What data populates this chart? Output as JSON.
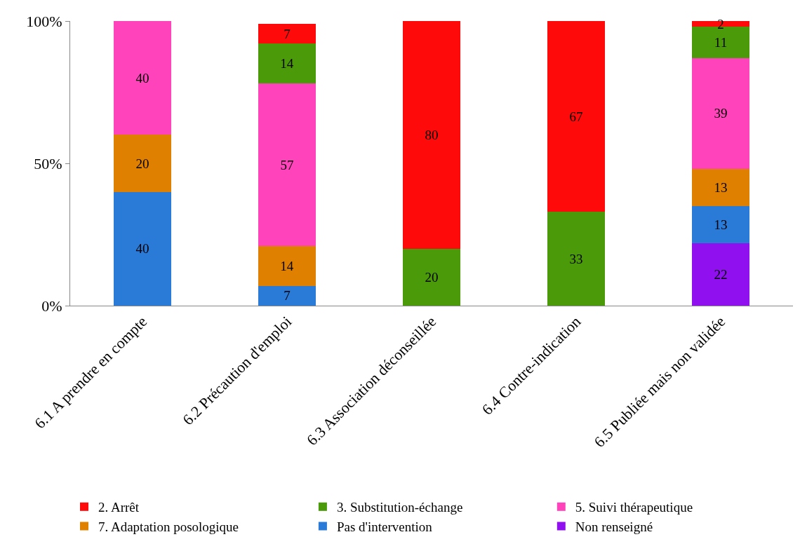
{
  "chart_data": {
    "type": "bar",
    "stacked": true,
    "data_labels": true,
    "legend": "bottom",
    "categories": [
      "6.1 A prendre en compte",
      "6.2 Précaution d'emploi",
      "6.3 Association déconseillée",
      "6.4 Contre-indication",
      "6.5 Publiée mais non validée"
    ],
    "ylim": [
      0,
      100
    ],
    "yticks": [
      {
        "value": 0,
        "label": "0%"
      },
      {
        "value": 50,
        "label": "50%"
      },
      {
        "value": 100,
        "label": "100%"
      }
    ],
    "series": [
      {
        "name": "Non renseigné",
        "color": "#9010f0",
        "values": [
          null,
          null,
          null,
          null,
          22
        ]
      },
      {
        "name": "Pas d'intervention",
        "color": "#2a7ad8",
        "values": [
          40,
          7,
          null,
          null,
          13
        ]
      },
      {
        "name": "7. Adaptation posologique",
        "color": "#e08000",
        "values": [
          20,
          14,
          null,
          null,
          13
        ]
      },
      {
        "name": "5. Suivi thérapeutique",
        "color": "#ff44bb",
        "values": [
          40,
          57,
          null,
          null,
          39
        ]
      },
      {
        "name": "3. Substitution-échange",
        "color": "#4a9a0a",
        "values": [
          null,
          14,
          20,
          33,
          11
        ]
      },
      {
        "name": "2. Arrêt",
        "color": "#fe0a0a",
        "values": [
          null,
          7,
          80,
          67,
          2
        ]
      }
    ]
  }
}
